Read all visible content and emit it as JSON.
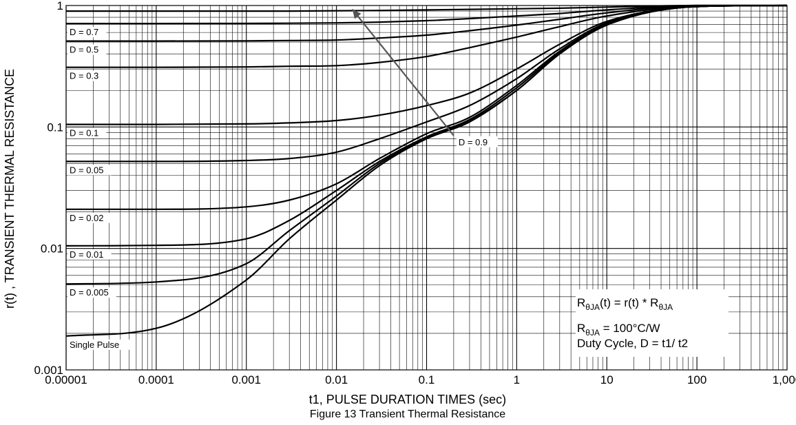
{
  "chart_data": {
    "type": "line",
    "title": "Figure 13 Transient Thermal Resistance",
    "xlabel": "t1, PULSE DURATION TIMES (sec)",
    "ylabel": "r(t) , TRANSIENT THERMAL RESISTANCE",
    "xscale": "log",
    "yscale": "log",
    "xlim": [
      1e-05,
      1000
    ],
    "ylim": [
      0.001,
      1
    ],
    "grid": true,
    "x_tick_labels": [
      "0.00001",
      "0.0001",
      "0.001",
      "0.01",
      "0.1",
      "1",
      "10",
      "100",
      "1,000"
    ],
    "y_tick_labels": [
      "0.001",
      "0.01",
      "0.1",
      "1"
    ],
    "x": [
      1e-05,
      0.0001,
      0.001,
      0.003,
      0.01,
      0.03,
      0.1,
      0.3,
      1,
      3,
      10,
      100,
      1000
    ],
    "series": [
      {
        "name": "D = 0.9",
        "values": [
          0.9,
          0.9,
          0.9,
          0.9,
          0.905,
          0.91,
          0.92,
          0.93,
          0.94,
          0.95,
          0.97,
          1.0,
          1.0
        ]
      },
      {
        "name": "D = 0.7",
        "values": [
          0.71,
          0.71,
          0.712,
          0.715,
          0.72,
          0.73,
          0.75,
          0.78,
          0.82,
          0.86,
          0.92,
          1.0,
          1.0
        ]
      },
      {
        "name": "D = 0.5",
        "values": [
          0.51,
          0.51,
          0.512,
          0.515,
          0.52,
          0.54,
          0.57,
          0.62,
          0.69,
          0.77,
          0.87,
          1.0,
          1.0
        ]
      },
      {
        "name": "D = 0.3",
        "values": [
          0.31,
          0.31,
          0.312,
          0.316,
          0.32,
          0.34,
          0.38,
          0.45,
          0.55,
          0.67,
          0.82,
          0.99,
          1.0
        ]
      },
      {
        "name": "D = 0.1",
        "values": [
          0.105,
          0.105,
          0.106,
          0.108,
          0.113,
          0.125,
          0.15,
          0.19,
          0.3,
          0.48,
          0.74,
          0.98,
          1.0
        ]
      },
      {
        "name": "D = 0.05",
        "values": [
          0.052,
          0.052,
          0.053,
          0.055,
          0.062,
          0.08,
          0.11,
          0.15,
          0.25,
          0.44,
          0.72,
          0.98,
          1.0
        ]
      },
      {
        "name": "D = 0.02",
        "values": [
          0.021,
          0.021,
          0.022,
          0.025,
          0.034,
          0.055,
          0.088,
          0.12,
          0.22,
          0.42,
          0.7,
          0.98,
          1.0
        ]
      },
      {
        "name": "D = 0.01",
        "values": [
          0.0105,
          0.0106,
          0.012,
          0.017,
          0.03,
          0.052,
          0.083,
          0.115,
          0.21,
          0.41,
          0.7,
          0.98,
          1.0
        ]
      },
      {
        "name": "D = 0.005",
        "values": [
          0.0051,
          0.0053,
          0.0075,
          0.014,
          0.027,
          0.05,
          0.081,
          0.112,
          0.2,
          0.4,
          0.69,
          0.98,
          1.0
        ]
      },
      {
        "name": "Single Pulse",
        "values": [
          0.0019,
          0.0022,
          0.0055,
          0.012,
          0.025,
          0.048,
          0.08,
          0.11,
          0.2,
          0.4,
          0.69,
          0.98,
          1.0
        ]
      }
    ],
    "annotation": {
      "text": "D = 0.9",
      "arrow_from": [
        0.2,
        0.085
      ],
      "arrow_to": [
        0.015,
        0.93
      ]
    },
    "formula_lines": {
      "line1": {
        "r": "R",
        "sub1": "θJA",
        "mid": "(t) = r(t) * R",
        "sub2": "θJA"
      },
      "line2": {
        "r": "R",
        "sub1": "θJA",
        "rest": " = 100°C/W"
      },
      "line3": "Duty Cycle, D = t1/ t2"
    },
    "colors": {
      "line": "#000000",
      "grid": "#000000",
      "background": "#ffffff",
      "arrow": "#555555"
    }
  }
}
